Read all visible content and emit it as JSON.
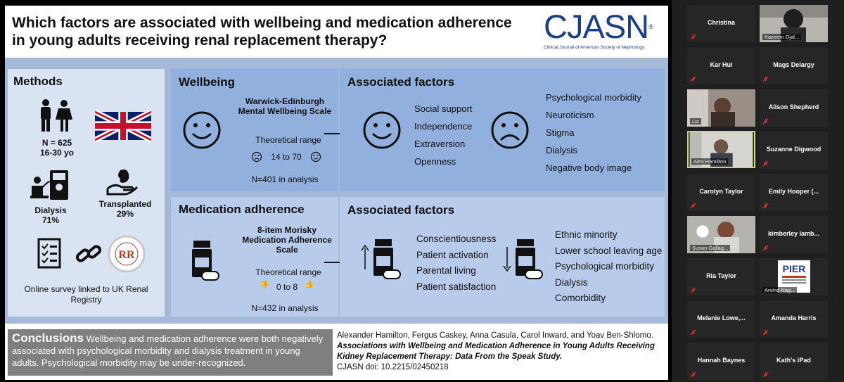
{
  "slide": {
    "title": "Which factors are associated with wellbeing and medication adherence in young adults receiving renal replacement therapy?",
    "logo_name": "CJASN",
    "logo_subtitle": "Clinical Journal of American Society of Nephrology",
    "methods": {
      "title": "Methods",
      "sample_n": "N = 625",
      "sample_age": "16-30 yo",
      "dialysis_label": "Dialysis",
      "dialysis_pct": "71%",
      "transplanted_label": "Transplanted",
      "transplanted_pct": "29%",
      "survey_text": "Online survey linked to UK Renal Registry"
    },
    "wellbeing": {
      "title": "Wellbeing",
      "scale": "Warwick-Edinburgh Mental Wellbeing Scale",
      "range_label": "Theoretical range",
      "range_value": "14 to 70",
      "n_analysis": "N=401 in analysis"
    },
    "wellbeing_factors": {
      "title": "Associated factors",
      "positive": [
        "Social support",
        "Independence",
        "Extraversion",
        "Openness"
      ],
      "negative": [
        "Psychological morbidity",
        "Neuroticism",
        "Stigma",
        "Dialysis",
        "Negative body image"
      ]
    },
    "medication": {
      "title": "Medication adherence",
      "scale": "8-item Morisky Medication Adherence Scale",
      "range_label": "Theoretical range",
      "range_value": "0 to 8",
      "n_analysis": "N=432 in analysis"
    },
    "medication_factors": {
      "title": "Associated factors",
      "positive": [
        "Conscientiousness",
        "Patient activation",
        "Parental living",
        "Patient satisfaction"
      ],
      "negative": [
        "Ethnic minority",
        "Lower school leaving age",
        "Psychological morbidity",
        "Dialysis",
        "Comorbidity"
      ]
    },
    "conclusions": {
      "heading": "Conclusions",
      "text": "Wellbeing and medication adherence were both negatively associated with psychological morbidity and dialysis treatment in young adults. Psychological morbidity may be under-recognized."
    },
    "citation": {
      "authors": "Alexander Hamilton, Fergus Caskey, Anna Casula, Carol Inward, and Yoav Ben-Shlomo.",
      "title": "Associations with Wellbeing and Medication Adherence in Young Adults Receiving Kidney Replacement Therapy: Data From the Speak Study.",
      "doi": "CJASN doi: 10.2215/02450218"
    }
  },
  "participants": [
    {
      "name": "Christina",
      "label": ""
    },
    {
      "name": "",
      "label": "Kazeem Ojal..."
    },
    {
      "name": "Kar Hui",
      "label": ""
    },
    {
      "name": "Mags Delargy",
      "label": ""
    },
    {
      "name": "",
      "label": "Liz"
    },
    {
      "name": "Alison Shepherd",
      "label": ""
    },
    {
      "name": "",
      "label": "Alex Hamilton"
    },
    {
      "name": "Suzanne Digwood",
      "label": ""
    },
    {
      "name": "Carolyn Taylor",
      "label": ""
    },
    {
      "name": "Emily Hooper (...",
      "label": ""
    },
    {
      "name": "",
      "label": "Susan Gallag..."
    },
    {
      "name": "kimberley lamb...",
      "label": ""
    },
    {
      "name": "Ria Taylor",
      "label": ""
    },
    {
      "name": "",
      "label": "Arvind Nag..."
    },
    {
      "name": "Melanie Lowe,...",
      "label": ""
    },
    {
      "name": "Amanda Harris",
      "label": ""
    },
    {
      "name": "Hannah Baynes",
      "label": ""
    },
    {
      "name": "Kath's iPad",
      "label": ""
    }
  ],
  "pier_logo_text": "PIER",
  "colors": {
    "panel_dark": "#92b0de",
    "panel_light": "#b8cbea",
    "methods_bg": "#dae3f1",
    "accent_active": "#c8e052"
  }
}
